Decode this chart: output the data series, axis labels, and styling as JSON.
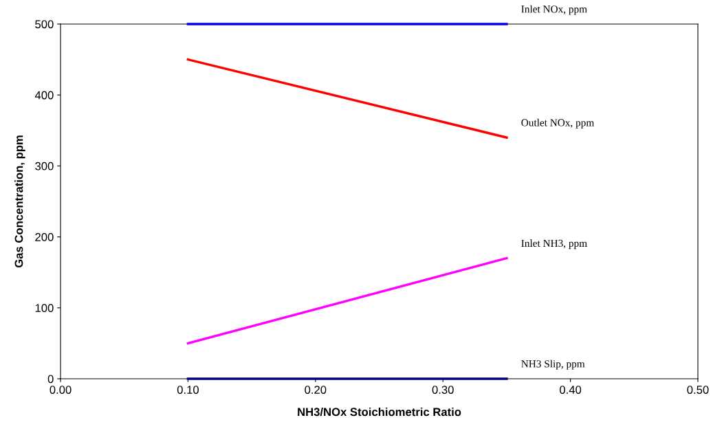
{
  "chart_data": {
    "type": "line",
    "xlabel": "NH3/NOx Stoichiometric Ratio",
    "ylabel": "Gas Concentration, ppm",
    "x": [
      0.1,
      0.35
    ],
    "series": [
      {
        "name": "Inlet NOx, ppm",
        "color": "#0000ff",
        "values": [
          500,
          500
        ]
      },
      {
        "name": "Outlet NOx, ppm",
        "color": "#ff0000",
        "values": [
          450,
          340
        ]
      },
      {
        "name": "Inlet NH3, ppm",
        "color": "#ff00ff",
        "values": [
          50,
          170
        ]
      },
      {
        "name": "NH3 Slip, ppm",
        "color": "#000080",
        "values": [
          0,
          0
        ]
      }
    ],
    "xlim": [
      0,
      0.5
    ],
    "xticks": [
      {
        "value": 0,
        "label": "0.00"
      },
      {
        "value": 0.1,
        "label": "0.10"
      },
      {
        "value": 0.2,
        "label": "0.20"
      },
      {
        "value": 0.3,
        "label": "0.30"
      },
      {
        "value": 0.4,
        "label": "0.40"
      },
      {
        "value": 0.5,
        "label": "0.50"
      }
    ],
    "ylim": [
      0,
      500
    ],
    "yticks": [
      0,
      100,
      200,
      300,
      400,
      500
    ],
    "grid": false,
    "legend": false,
    "marker": "none",
    "line_style": "solid"
  }
}
